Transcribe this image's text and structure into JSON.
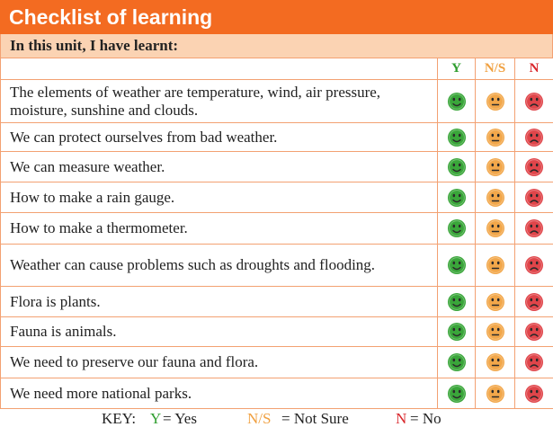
{
  "title": "Checklist of learning",
  "subheader": "In this unit, I have learnt:",
  "columns": {
    "y": "Y",
    "ns": "N/S",
    "n": "N"
  },
  "colors": {
    "orange": "#f36b21",
    "yes": "#2f9e2f",
    "notsure": "#f0a040",
    "no": "#d9262b"
  },
  "rows": [
    {
      "text": "The elements of weather are temperature, wind, air pressure, moisture, sunshine and clouds."
    },
    {
      "text": "We can protect ourselves from bad weather."
    },
    {
      "text": "We can measure weather."
    },
    {
      "text": "How to make a rain gauge."
    },
    {
      "text": "How to make a thermometer."
    },
    {
      "text": "Weather can cause problems such as droughts and flooding."
    },
    {
      "text": "Flora is plants."
    },
    {
      "text": "Fauna is animals."
    },
    {
      "text": "We need to preserve our fauna and flora."
    },
    {
      "text": "We need more national parks."
    }
  ],
  "key": {
    "label": "KEY:",
    "y_code": "Y",
    "y_text": "= Yes",
    "ns_code": "N/S",
    "ns_text": "= Not Sure",
    "n_code": "N",
    "n_text": "= No"
  }
}
